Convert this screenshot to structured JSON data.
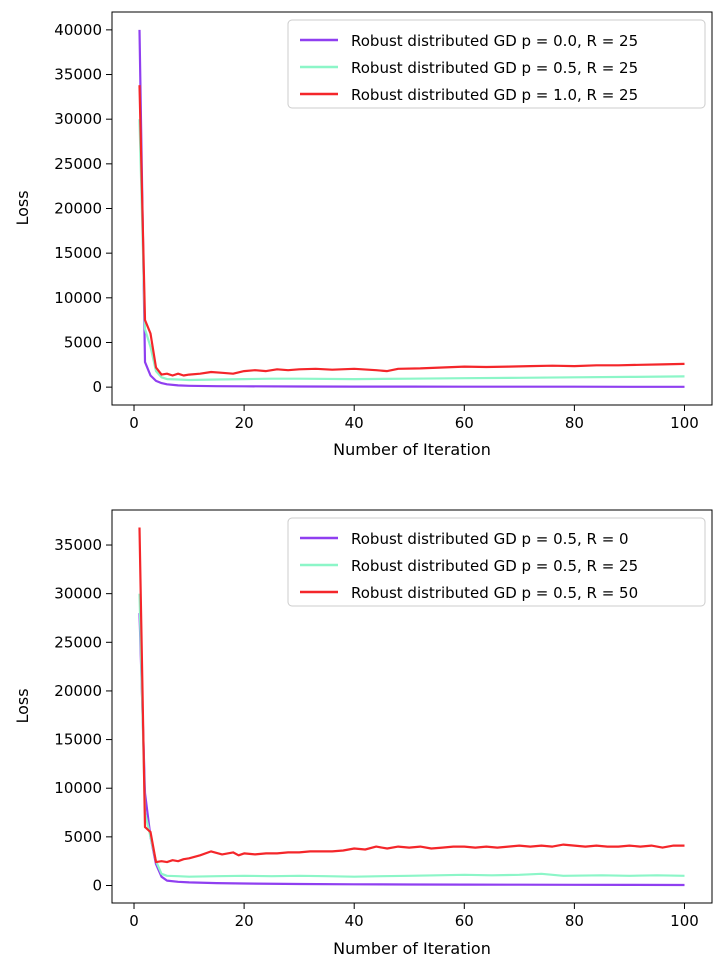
{
  "colors": {
    "purple": "#8f3ff0",
    "mint": "#8cf6c8",
    "red": "#f4262a"
  },
  "chart_data": [
    {
      "type": "line",
      "xlabel": "Number of Iteration",
      "ylabel": "Loss",
      "xlim": [
        -4,
        105
      ],
      "ylim": [
        -2000,
        42000
      ],
      "xticks": [
        0,
        20,
        40,
        60,
        80,
        100
      ],
      "xtick_labels": [
        "0",
        "20",
        "40",
        "60",
        "80",
        "100"
      ],
      "yticks": [
        0,
        5000,
        10000,
        15000,
        20000,
        25000,
        30000,
        35000,
        40000
      ],
      "ytick_labels": [
        "0",
        "5000",
        "10000",
        "15000",
        "20000",
        "25000",
        "30000",
        "35000",
        "40000"
      ],
      "grid": false,
      "legend_position": "top-right",
      "series": [
        {
          "name": "Robust distributed GD p = 0.0, R = 25",
          "color": "#8f3ff0",
          "x": [
            1,
            2,
            3,
            4,
            5,
            6,
            8,
            10,
            15,
            20,
            30,
            40,
            50,
            60,
            70,
            80,
            90,
            100
          ],
          "y": [
            40000,
            2800,
            1300,
            700,
            450,
            320,
            200,
            150,
            110,
            90,
            70,
            60,
            55,
            50,
            48,
            45,
            42,
            40
          ]
        },
        {
          "name": "Robust distributed GD p = 0.5, R = 25",
          "color": "#8cf6c8",
          "x": [
            1,
            2,
            3,
            4,
            5,
            6,
            8,
            10,
            15,
            20,
            25,
            30,
            40,
            50,
            60,
            70,
            80,
            90,
            100
          ],
          "y": [
            30000,
            6500,
            4500,
            1800,
            1100,
            900,
            850,
            800,
            850,
            900,
            950,
            950,
            900,
            950,
            1000,
            1050,
            1100,
            1150,
            1200
          ]
        },
        {
          "name": "Robust distributed GD p = 1.0, R = 25",
          "color": "#f4262a",
          "x": [
            1,
            2,
            3,
            4,
            5,
            6,
            7,
            8,
            9,
            10,
            12,
            14,
            16,
            18,
            20,
            22,
            24,
            26,
            28,
            30,
            33,
            36,
            40,
            44,
            46,
            48,
            52,
            56,
            60,
            64,
            68,
            72,
            76,
            80,
            84,
            88,
            92,
            96,
            100
          ],
          "y": [
            33800,
            7500,
            6000,
            2200,
            1400,
            1500,
            1300,
            1500,
            1300,
            1400,
            1500,
            1700,
            1600,
            1500,
            1800,
            1900,
            1800,
            2000,
            1900,
            2000,
            2050,
            1950,
            2050,
            1900,
            1800,
            2050,
            2100,
            2200,
            2300,
            2250,
            2300,
            2350,
            2400,
            2350,
            2450,
            2450,
            2500,
            2550,
            2600
          ]
        }
      ]
    },
    {
      "type": "line",
      "xlabel": "Number of Iteration",
      "ylabel": "Loss",
      "xlim": [
        -4,
        105
      ],
      "ylim": [
        -1800,
        38600
      ],
      "xticks": [
        0,
        20,
        40,
        60,
        80,
        100
      ],
      "xtick_labels": [
        "0",
        "20",
        "40",
        "60",
        "80",
        "100"
      ],
      "yticks": [
        0,
        5000,
        10000,
        15000,
        20000,
        25000,
        30000,
        35000
      ],
      "ytick_labels": [
        "0",
        "5000",
        "10000",
        "15000",
        "20000",
        "25000",
        "30000",
        "35000"
      ],
      "grid": false,
      "legend_position": "top-right",
      "series": [
        {
          "name": "Robust distributed GD p = 0.5, R = 0",
          "color": "#8f3ff0",
          "x": [
            1,
            2,
            3,
            4,
            5,
            6,
            8,
            10,
            15,
            20,
            30,
            40,
            50,
            60,
            70,
            80,
            90,
            100
          ],
          "y": [
            28000,
            9500,
            5000,
            2200,
            900,
            500,
            380,
            320,
            250,
            200,
            150,
            120,
            100,
            90,
            80,
            70,
            60,
            50
          ]
        },
        {
          "name": "Robust distributed GD p = 0.5, R = 25",
          "color": "#8cf6c8",
          "x": [
            1,
            2,
            3,
            4,
            5,
            6,
            8,
            10,
            15,
            20,
            25,
            30,
            35,
            40,
            45,
            50,
            55,
            60,
            65,
            70,
            74,
            78,
            85,
            90,
            95,
            100
          ],
          "y": [
            30000,
            7500,
            5000,
            2500,
            1200,
            1000,
            950,
            900,
            950,
            1000,
            950,
            1000,
            950,
            900,
            950,
            1000,
            1050,
            1100,
            1050,
            1100,
            1200,
            1000,
            1050,
            1000,
            1050,
            1000
          ]
        },
        {
          "name": "Robust distributed GD p = 0.5, R = 50",
          "color": "#f4262a",
          "x": [
            1,
            2,
            3,
            4,
            5,
            6,
            7,
            8,
            9,
            10,
            12,
            14,
            16,
            18,
            19,
            20,
            22,
            24,
            26,
            28,
            30,
            32,
            34,
            36,
            38,
            40,
            42,
            44,
            46,
            48,
            50,
            52,
            54,
            56,
            58,
            60,
            62,
            64,
            66,
            68,
            70,
            72,
            74,
            76,
            78,
            80,
            82,
            84,
            86,
            88,
            90,
            92,
            94,
            96,
            98,
            100
          ],
          "y": [
            36800,
            6000,
            5500,
            2400,
            2500,
            2400,
            2600,
            2500,
            2700,
            2800,
            3100,
            3500,
            3200,
            3400,
            3100,
            3300,
            3200,
            3300,
            3300,
            3400,
            3400,
            3500,
            3500,
            3500,
            3600,
            3800,
            3700,
            4000,
            3800,
            4000,
            3900,
            4000,
            3800,
            3900,
            4000,
            4000,
            3900,
            4000,
            3900,
            4000,
            4100,
            4000,
            4100,
            4000,
            4200,
            4100,
            4000,
            4100,
            4000,
            4000,
            4100,
            4000,
            4100,
            3900,
            4100,
            4100
          ]
        }
      ]
    }
  ]
}
